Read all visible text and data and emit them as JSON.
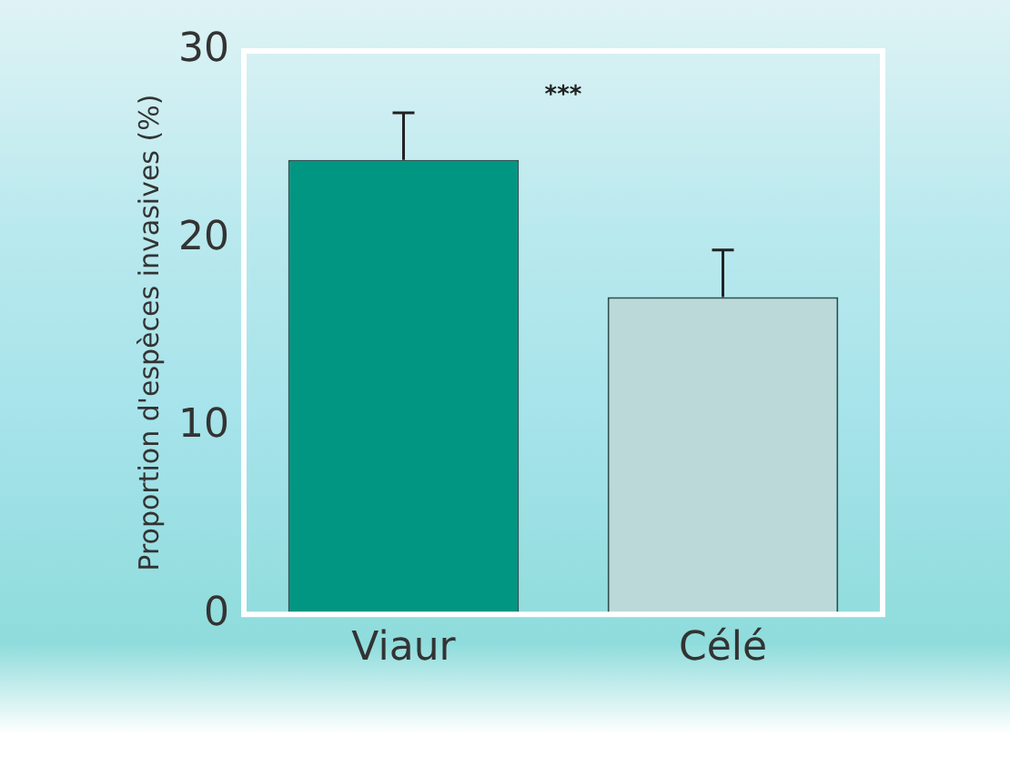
{
  "chart_data": {
    "type": "bar",
    "ylabel": "Proportion d'espèces invasives (%)",
    "categories": [
      "Viaur",
      "Célé"
    ],
    "values": [
      24.2,
      16.9
    ],
    "colors": [
      "#009682",
      "#bcd9d9"
    ],
    "errors": [
      [
        24.2,
        26.7
      ],
      [
        16.9,
        19.4
      ]
    ],
    "ylim": [
      0,
      30
    ],
    "yticks": [
      0,
      10,
      20,
      30
    ],
    "grid": false,
    "legend": false,
    "annotations": [
      "***"
    ]
  }
}
